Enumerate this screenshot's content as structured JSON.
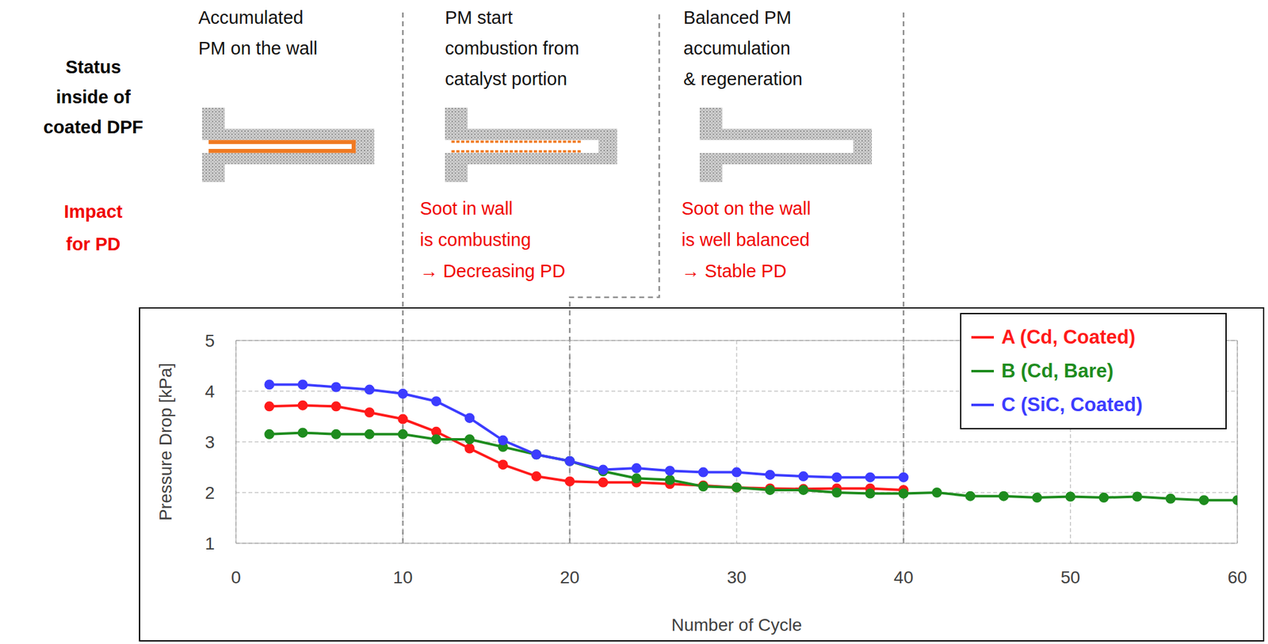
{
  "header": {
    "row_labels": [
      [
        "Status",
        "inside of",
        "coated DPF"
      ],
      [
        "Impact",
        "for PD"
      ]
    ],
    "phases": [
      {
        "title": [
          "Accumulated",
          "PM on the wall"
        ]
      },
      {
        "title": [
          "PM start",
          "combustion from",
          "catalyst portion"
        ],
        "impact": [
          "Soot in wall",
          "is combusting",
          "→ Decreasing PD"
        ]
      },
      {
        "title": [
          "Balanced PM",
          "accumulation",
          "& regeneration"
        ],
        "impact": [
          "Soot on the wall",
          "is well balanced",
          "→ Stable PD"
        ]
      }
    ]
  },
  "chart_data": {
    "type": "line",
    "x_label": "Number of Cycle",
    "y_label": "Pressure Drop [kPa]",
    "x": [
      2,
      4,
      6,
      8,
      10,
      12,
      14,
      16,
      18,
      20,
      22,
      24,
      26,
      28,
      30,
      32,
      34,
      36,
      38,
      40,
      42,
      44,
      46,
      48,
      50,
      52,
      54,
      56,
      58,
      60
    ],
    "series": [
      {
        "name": "A (Cd, Coated)",
        "color": "#ff1a1a",
        "marker": "circle",
        "line_style": "solid",
        "values": [
          3.7,
          3.72,
          3.7,
          3.58,
          3.45,
          3.2,
          2.87,
          2.55,
          2.32,
          2.22,
          2.2,
          2.2,
          2.17,
          2.14,
          2.1,
          2.08,
          2.07,
          2.08,
          2.08,
          2.05,
          null,
          null,
          null,
          null,
          null,
          null,
          null,
          null,
          null,
          null
        ]
      },
      {
        "name": "B (Cd, Bare)",
        "color": "#1e8c1e",
        "marker": "circle",
        "line_style": "solid",
        "values": [
          3.15,
          3.18,
          3.15,
          3.15,
          3.15,
          3.05,
          3.05,
          2.9,
          2.75,
          2.62,
          2.42,
          2.28,
          2.25,
          2.12,
          2.1,
          2.05,
          2.05,
          2.0,
          1.98,
          1.98,
          2.0,
          1.93,
          1.93,
          1.9,
          1.92,
          1.9,
          1.92,
          1.88,
          1.85,
          1.85
        ]
      },
      {
        "name": "C (SiC, Coated)",
        "color": "#3c3cff",
        "marker": "circle",
        "line_style": "solid",
        "values": [
          4.13,
          4.13,
          4.08,
          4.03,
          3.95,
          3.8,
          3.47,
          3.03,
          2.75,
          2.62,
          2.45,
          2.48,
          2.43,
          2.4,
          2.4,
          2.35,
          2.32,
          2.3,
          2.3,
          2.3,
          null,
          null,
          null,
          null,
          null,
          null,
          null,
          null,
          null,
          null
        ]
      }
    ],
    "xlim": [
      0,
      60
    ],
    "xticks": [
      0,
      10,
      20,
      30,
      40,
      50,
      60
    ],
    "ylim": [
      1,
      5
    ],
    "yticks": [
      1,
      2,
      3,
      4,
      5
    ],
    "grid": true,
    "legend": "upper right",
    "phase_boundaries": [
      10,
      20,
      40
    ]
  }
}
